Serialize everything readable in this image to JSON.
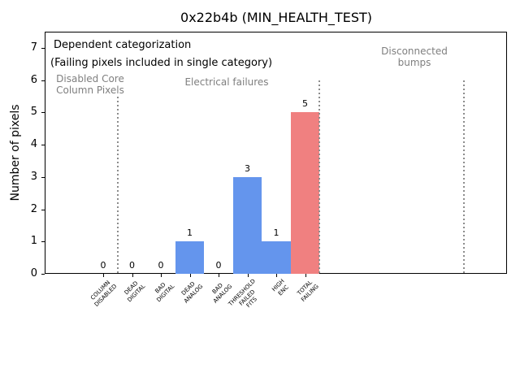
{
  "chart_data": {
    "type": "bar",
    "title": "0x22b4b (MIN_HEALTH_TEST)",
    "ylabel": "Number of pixels",
    "categories": [
      "COLUMN\nDISABLED",
      "DEAD\nDIGITAL",
      "BAD\nDIGITAL",
      "DEAD\nANALOG",
      "BAD\nANALOG",
      "THRESHOLD\nFAILED\nFITS",
      "HIGH\nENC",
      "TOTAL\nFAILING"
    ],
    "values": [
      0,
      0,
      0,
      1,
      0,
      3,
      1,
      5
    ],
    "bar_colors": [
      "#6495ED",
      "#6495ED",
      "#6495ED",
      "#6495ED",
      "#6495ED",
      "#6495ED",
      "#6495ED",
      "#F08080"
    ],
    "yticks": [
      0,
      1,
      2,
      3,
      4,
      5,
      6,
      7
    ],
    "ylim": [
      0,
      7.5
    ],
    "grid": false,
    "legend": "none",
    "annotation_line1": "Dependent categorization",
    "annotation_line2": "(Failing pixels included in single category)",
    "sections": [
      "Disabled Core\nColumn Pixels",
      "Electrical failures",
      "Disconnected\nbumps"
    ],
    "section_dividers_x_data": [
      0.5,
      7.5,
      12.5
    ],
    "divider_top_y_data": 6,
    "colors": {
      "bar_blue": "#6495ED",
      "bar_red": "#F08080",
      "section_text": "#7f7f7f",
      "divider": "#8c8c8c",
      "axis": "#000000"
    }
  }
}
